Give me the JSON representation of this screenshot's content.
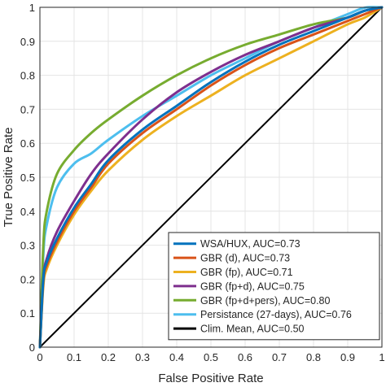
{
  "chart_data": {
    "type": "line",
    "title": "",
    "xlabel": "False Positive Rate",
    "ylabel": "True Positive Rate",
    "xlim": [
      0,
      1
    ],
    "ylim": [
      0,
      1
    ],
    "xticks": [
      "0",
      "0.1",
      "0.2",
      "0.3",
      "0.4",
      "0.5",
      "0.6",
      "0.7",
      "0.8",
      "0.9",
      "1"
    ],
    "yticks": [
      "0",
      "0.1",
      "0.2",
      "0.3",
      "0.4",
      "0.5",
      "0.6",
      "0.7",
      "0.8",
      "0.9",
      "1"
    ],
    "grid": true,
    "legend_position": "bottom-right",
    "series": [
      {
        "name": "WSA/HUX, AUC=0.73",
        "color": "#0072bd",
        "x": [
          0,
          0.01,
          0.02,
          0.05,
          0.1,
          0.15,
          0.2,
          0.3,
          0.4,
          0.5,
          0.6,
          0.7,
          0.8,
          0.9,
          0.95,
          1
        ],
        "y": [
          0,
          0.2,
          0.25,
          0.32,
          0.41,
          0.48,
          0.55,
          0.64,
          0.71,
          0.78,
          0.84,
          0.89,
          0.93,
          0.97,
          0.99,
          1
        ]
      },
      {
        "name": "GBR (d), AUC=0.73",
        "color": "#d95319",
        "x": [
          0,
          0.01,
          0.02,
          0.05,
          0.1,
          0.15,
          0.2,
          0.3,
          0.4,
          0.5,
          0.6,
          0.7,
          0.8,
          0.9,
          0.95,
          1
        ],
        "y": [
          0,
          0.19,
          0.24,
          0.31,
          0.4,
          0.47,
          0.54,
          0.63,
          0.7,
          0.77,
          0.83,
          0.88,
          0.92,
          0.96,
          0.98,
          1
        ]
      },
      {
        "name": "GBR (fp), AUC=0.71",
        "color": "#edb120",
        "x": [
          0,
          0.01,
          0.02,
          0.05,
          0.1,
          0.15,
          0.2,
          0.3,
          0.4,
          0.5,
          0.6,
          0.7,
          0.8,
          0.9,
          0.95,
          1
        ],
        "y": [
          0,
          0.18,
          0.23,
          0.3,
          0.39,
          0.46,
          0.52,
          0.61,
          0.68,
          0.74,
          0.8,
          0.85,
          0.9,
          0.95,
          0.97,
          1
        ]
      },
      {
        "name": "GBR (fp+d), AUC=0.75",
        "color": "#7e2f8e",
        "x": [
          0,
          0.01,
          0.02,
          0.05,
          0.1,
          0.15,
          0.2,
          0.3,
          0.4,
          0.5,
          0.6,
          0.7,
          0.8,
          0.9,
          0.95,
          1
        ],
        "y": [
          0,
          0.2,
          0.26,
          0.34,
          0.43,
          0.51,
          0.57,
          0.67,
          0.75,
          0.81,
          0.86,
          0.9,
          0.94,
          0.97,
          0.99,
          1
        ]
      },
      {
        "name": "GBR (fp+d+pers), AUC=0.80",
        "color": "#77ac30",
        "x": [
          0,
          0.01,
          0.02,
          0.05,
          0.1,
          0.15,
          0.2,
          0.3,
          0.4,
          0.5,
          0.6,
          0.7,
          0.8,
          0.9,
          0.95,
          1
        ],
        "y": [
          0,
          0.3,
          0.4,
          0.51,
          0.58,
          0.63,
          0.67,
          0.74,
          0.8,
          0.85,
          0.89,
          0.92,
          0.95,
          0.97,
          0.99,
          1
        ]
      },
      {
        "name": "Persistance (27-days), AUC=0.76",
        "color": "#4dbeee",
        "x": [
          0,
          0.01,
          0.02,
          0.05,
          0.1,
          0.15,
          0.2,
          0.3,
          0.4,
          0.5,
          0.6,
          0.7,
          0.8,
          0.9,
          0.95,
          1
        ],
        "y": [
          0,
          0.27,
          0.36,
          0.47,
          0.54,
          0.57,
          0.61,
          0.68,
          0.74,
          0.8,
          0.85,
          0.9,
          0.94,
          0.98,
          0.999,
          1
        ]
      },
      {
        "name": "Clim. Mean, AUC=0.50",
        "color": "#000000",
        "x": [
          0,
          1
        ],
        "y": [
          0,
          1
        ]
      }
    ]
  }
}
